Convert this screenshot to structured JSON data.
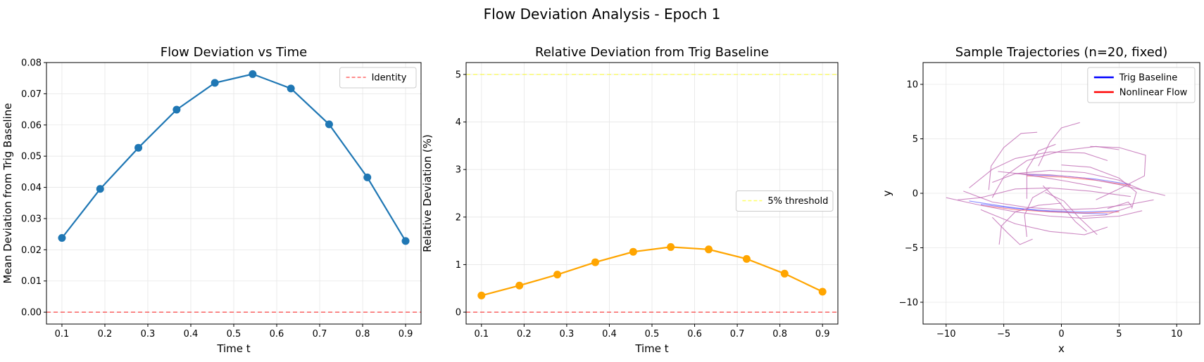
{
  "figure": {
    "suptitle": "Flow Deviation Analysis - Epoch 1"
  },
  "chart_data": [
    {
      "type": "line",
      "title": "Flow Deviation vs Time",
      "xlabel": "Time t",
      "ylabel": "Mean Deviation from Trig Baseline",
      "x": [
        0.1,
        0.189,
        0.278,
        0.367,
        0.456,
        0.544,
        0.633,
        0.722,
        0.811,
        0.9
      ],
      "series": [
        {
          "name": "",
          "color": "#1f77b4",
          "marker": "circle",
          "values": [
            0.0238,
            0.0395,
            0.0527,
            0.0649,
            0.0735,
            0.0763,
            0.0717,
            0.0602,
            0.0432,
            0.0228
          ]
        }
      ],
      "reference_lines": [
        {
          "name": "Identity",
          "orientation": "horizontal",
          "value": 0.0,
          "color": "#ff0000",
          "style": "dashed"
        }
      ],
      "xlim": [
        0.064,
        0.936
      ],
      "ylim": [
        -0.0038,
        0.08
      ],
      "xticks": [
        0.1,
        0.2,
        0.3,
        0.4,
        0.5,
        0.6,
        0.7,
        0.8,
        0.9
      ],
      "xtick_labels": [
        "0.1",
        "0.2",
        "0.3",
        "0.4",
        "0.5",
        "0.6",
        "0.7",
        "0.8",
        "0.9"
      ],
      "yticks": [
        0.0,
        0.01,
        0.02,
        0.03,
        0.04,
        0.05,
        0.06,
        0.07,
        0.08
      ],
      "ytick_labels": [
        "0.00",
        "0.01",
        "0.02",
        "0.03",
        "0.04",
        "0.05",
        "0.06",
        "0.07",
        "0.08"
      ],
      "grid": true,
      "legend": {
        "placement": "top-right",
        "entries": [
          "Identity"
        ]
      }
    },
    {
      "type": "line",
      "title": "Relative Deviation from Trig Baseline",
      "xlabel": "Time t",
      "ylabel": "Relative Deviation (%)",
      "x": [
        0.1,
        0.189,
        0.278,
        0.367,
        0.456,
        0.544,
        0.633,
        0.722,
        0.811,
        0.9
      ],
      "series": [
        {
          "name": "",
          "color": "#ffa500",
          "marker": "circle",
          "values": [
            0.35,
            0.56,
            0.79,
            1.05,
            1.27,
            1.37,
            1.32,
            1.12,
            0.81,
            0.43
          ]
        }
      ],
      "reference_lines": [
        {
          "name": "",
          "orientation": "horizontal",
          "value": 0.0,
          "color": "#ff0000",
          "style": "dashed"
        },
        {
          "name": "5% threshold",
          "orientation": "horizontal",
          "value": 5.0,
          "color": "#ffff00",
          "style": "dashed"
        }
      ],
      "xlim": [
        0.064,
        0.936
      ],
      "ylim": [
        -0.25,
        5.25
      ],
      "xticks": [
        0.1,
        0.2,
        0.3,
        0.4,
        0.5,
        0.6,
        0.7,
        0.8,
        0.9
      ],
      "xtick_labels": [
        "0.1",
        "0.2",
        "0.3",
        "0.4",
        "0.5",
        "0.6",
        "0.7",
        "0.8",
        "0.9"
      ],
      "yticks": [
        0,
        1,
        2,
        3,
        4,
        5
      ],
      "ytick_labels": [
        "0",
        "1",
        "2",
        "3",
        "4",
        "5"
      ],
      "grid": true,
      "legend": {
        "placement": "center-right",
        "entries": [
          "5% threshold"
        ]
      }
    },
    {
      "type": "line",
      "title": "Sample Trajectories (n=20, fixed)",
      "xlabel": "x",
      "ylabel": "y",
      "xlim": [
        -12,
        12
      ],
      "ylim": [
        -12,
        12
      ],
      "xticks": [
        -10,
        -5,
        0,
        5,
        10
      ],
      "xtick_labels": [
        "−10",
        "−5",
        "0",
        "5",
        "10"
      ],
      "yticks": [
        -10,
        -5,
        0,
        5,
        10
      ],
      "ytick_labels": [
        "−10",
        "−5",
        "0",
        "5",
        "10"
      ],
      "grid": true,
      "legend": {
        "placement": "top-right",
        "entries": [
          "Trig Baseline",
          "Nonlinear Flow"
        ]
      },
      "series": [
        {
          "name": "Trig Baseline",
          "color": "#0000ff",
          "trajectories": [
            [
              [
                -7,
                -1.0
              ],
              [
                -4,
                -1.4
              ],
              [
                -1,
                -1.6
              ],
              [
                2,
                -1.7
              ],
              [
                5,
                -1.6
              ]
            ],
            [
              [
                -3,
                1.7
              ],
              [
                0,
                1.6
              ],
              [
                3,
                1.3
              ],
              [
                6,
                0.8
              ]
            ],
            [
              [
                -8,
                -0.7
              ],
              [
                -5,
                -1.2
              ],
              [
                -2,
                -1.6
              ],
              [
                1,
                -1.8
              ],
              [
                4,
                -1.9
              ]
            ]
          ]
        },
        {
          "name": "Nonlinear Flow",
          "color": "#ff0000",
          "trajectories": [
            [
              [
                -7,
                -1.1
              ],
              [
                -4,
                -1.5
              ],
              [
                -1,
                -1.7
              ],
              [
                2,
                -1.8
              ],
              [
                5,
                -1.7
              ]
            ],
            [
              [
                -3,
                1.6
              ],
              [
                0,
                1.5
              ],
              [
                3,
                1.2
              ],
              [
                6,
                0.7
              ]
            ]
          ]
        },
        {
          "name": "",
          "color": "#c06cb4",
          "trajectories": [
            [
              [
                -10,
                -0.4
              ],
              [
                -7,
                -1.1
              ],
              [
                -4,
                -1.7
              ],
              [
                -1,
                -2.1
              ],
              [
                2,
                -2.3
              ],
              [
                5,
                -2.1
              ],
              [
                7,
                -1.6
              ]
            ],
            [
              [
                -8.5,
                0.2
              ],
              [
                -6,
                -0.8
              ],
              [
                -3,
                -1.3
              ],
              [
                0,
                -1.5
              ],
              [
                3,
                -1.4
              ],
              [
                6,
                -1.0
              ],
              [
                8,
                -0.6
              ]
            ],
            [
              [
                -6,
                1.0
              ],
              [
                -4,
                1.8
              ],
              [
                -1,
                2.1
              ],
              [
                2,
                1.9
              ],
              [
                5,
                1.2
              ],
              [
                7,
                0.3
              ]
            ],
            [
              [
                -4,
                1.8
              ],
              [
                -1,
                1.7
              ],
              [
                2,
                1.4
              ],
              [
                5,
                0.8
              ],
              [
                9,
                -0.2
              ]
            ],
            [
              [
                -7,
                -1.5
              ],
              [
                -4,
                -2.8
              ],
              [
                -1,
                -3.5
              ],
              [
                2,
                -3.8
              ],
              [
                4,
                -3.1
              ]
            ],
            [
              [
                -6,
                -0.4
              ],
              [
                -5,
                1.5
              ],
              [
                -3,
                3.0
              ],
              [
                0,
                3.9
              ],
              [
                3,
                4.3
              ],
              [
                5,
                4.0
              ]
            ],
            [
              [
                -8,
                0.5
              ],
              [
                -6,
                2.2
              ],
              [
                -4,
                3.2
              ],
              [
                -1,
                3.8
              ],
              [
                2,
                3.7
              ],
              [
                4,
                3.0
              ]
            ],
            [
              [
                -6.3,
                0.3
              ],
              [
                -6.1,
                2.5
              ],
              [
                -5,
                4.2
              ],
              [
                -3.5,
                5.5
              ],
              [
                -2.1,
                5.6
              ]
            ],
            [
              [
                -2,
                2.5
              ],
              [
                -1,
                4.7
              ],
              [
                0,
                6.0
              ],
              [
                1.6,
                6.5
              ]
            ],
            [
              [
                -3,
                -0.5
              ],
              [
                -3,
                2.2
              ],
              [
                -2,
                3.9
              ],
              [
                -0.5,
                4.5
              ]
            ],
            [
              [
                -6,
                -2.2
              ],
              [
                -4.7,
                -3.6
              ],
              [
                -3.6,
                -4.7
              ],
              [
                -2.5,
                -4.2
              ]
            ],
            [
              [
                -3,
                -4.0
              ],
              [
                -3.2,
                -2.0
              ],
              [
                -2.5,
                -0.4
              ],
              [
                -1,
                0.5
              ]
            ],
            [
              [
                2.5,
                4.3
              ],
              [
                5,
                4.2
              ],
              [
                7.3,
                3.5
              ],
              [
                7.2,
                1.6
              ],
              [
                5,
                0.4
              ],
              [
                3,
                -0.6
              ]
            ],
            [
              [
                -5.4,
                -4.7
              ],
              [
                -5.2,
                -3.0
              ],
              [
                -4,
                -1.7
              ],
              [
                -2,
                -1.1
              ],
              [
                0,
                -0.9
              ]
            ],
            [
              [
                -1.4,
                0.1
              ],
              [
                0.2,
                -0.7
              ],
              [
                1.5,
                -2.2
              ],
              [
                3.1,
                -3.8
              ]
            ],
            [
              [
                0,
                2.6
              ],
              [
                2.5,
                2.4
              ],
              [
                5,
                1.4
              ],
              [
                6.5,
                0.1
              ],
              [
                6.1,
                -1.4
              ]
            ],
            [
              [
                4,
                -1.4
              ],
              [
                5.8,
                -0.8
              ],
              [
                6.1,
                -1.2
              ],
              [
                3.8,
                -2.0
              ],
              [
                1.8,
                -2.1
              ]
            ],
            [
              [
                -1.6,
                0.7
              ],
              [
                -0.2,
                -0.8
              ],
              [
                1.2,
                -2.6
              ],
              [
                2.2,
                -3.5
              ]
            ],
            [
              [
                -5.5,
                2.0
              ],
              [
                -3.7,
                1.8
              ],
              [
                -1.8,
                1.5
              ],
              [
                0.5,
                1.1
              ],
              [
                3.5,
                0.5
              ]
            ],
            [
              [
                -9,
                -0.6
              ],
              [
                -7,
                -0.4
              ],
              [
                -4,
                0.4
              ],
              [
                -1,
                0.5
              ],
              [
                2.5,
                0.2
              ],
              [
                6,
                -0.3
              ]
            ]
          ]
        }
      ]
    }
  ]
}
